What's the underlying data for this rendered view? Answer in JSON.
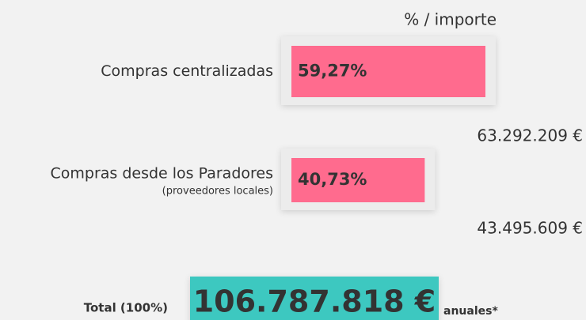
{
  "chart_data": {
    "type": "bar",
    "orientation": "horizontal",
    "header": "% / importe",
    "categories": [
      "Compras centralizadas",
      "Compras desde los Paradores"
    ],
    "category_notes": [
      null,
      "(proveedores locales)"
    ],
    "values": [
      59.27,
      40.73
    ],
    "value_labels": [
      "59,27%",
      "40,73%"
    ],
    "amount_labels": [
      "63.292.209 €",
      "43.495.609 €"
    ],
    "color": "#ff6b8e",
    "xlim": [
      0,
      60
    ],
    "total": {
      "label": "Total (100%)",
      "amount": "106.787.818 €",
      "suffix": "anuales*",
      "color": "#3cc8c0"
    }
  }
}
